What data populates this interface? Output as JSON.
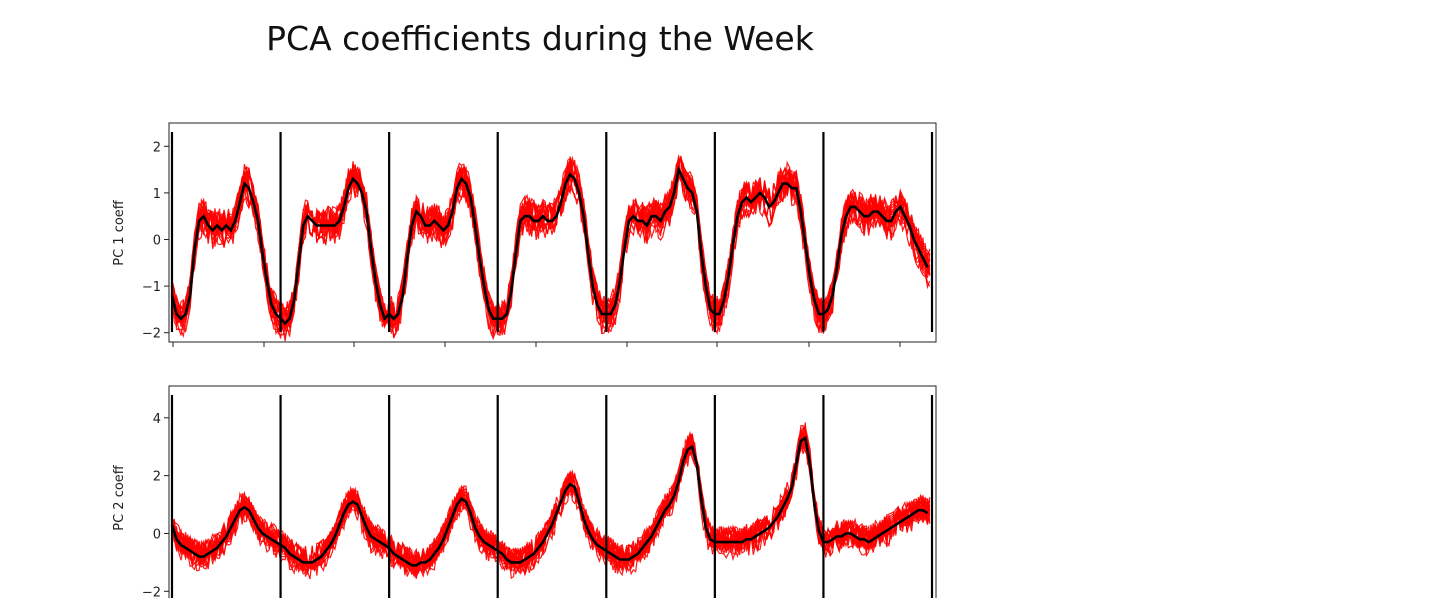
{
  "title": "PCA coefficients during the Week",
  "chart_data": [
    {
      "type": "line",
      "ylabel": "PC 1 coeff",
      "ylim": [
        -2.2,
        2.5
      ],
      "yticks": [
        -2,
        -1,
        0,
        1,
        2
      ],
      "ytick_labels": [
        "−2",
        "−1",
        "0",
        "1",
        "2"
      ],
      "day_boundaries": [
        0,
        1,
        2,
        3,
        4,
        5,
        6,
        7
      ],
      "series_color": "#ff0000",
      "mean_color": "#000000",
      "n_series": 18,
      "mean_profiles_per_day": [
        [
          -1.2,
          -1.6,
          -1.7,
          -1.6,
          -1.2,
          -0.2,
          0.4,
          0.5,
          0.3,
          0.2,
          0.3,
          0.2,
          0.3,
          0.2,
          0.4,
          0.8,
          1.2,
          1.1,
          0.8,
          0.4,
          -0.3,
          -0.9,
          -1.4,
          -1.6
        ],
        [
          -1.7,
          -1.8,
          -1.7,
          -1.3,
          -0.5,
          0.3,
          0.5,
          0.4,
          0.3,
          0.3,
          0.3,
          0.3,
          0.3,
          0.4,
          0.7,
          1.1,
          1.3,
          1.2,
          1.0,
          0.6,
          -0.2,
          -0.9,
          -1.4,
          -1.7
        ],
        [
          -1.6,
          -1.7,
          -1.6,
          -1.2,
          -0.4,
          0.3,
          0.6,
          0.5,
          0.3,
          0.3,
          0.4,
          0.3,
          0.2,
          0.3,
          0.6,
          1.1,
          1.3,
          1.2,
          0.9,
          0.3,
          -0.4,
          -1.0,
          -1.5,
          -1.7
        ],
        [
          -1.7,
          -1.7,
          -1.6,
          -1.1,
          -0.3,
          0.4,
          0.5,
          0.5,
          0.4,
          0.4,
          0.5,
          0.4,
          0.4,
          0.5,
          0.8,
          1.2,
          1.4,
          1.3,
          1.0,
          0.5,
          -0.3,
          -1.0,
          -1.4,
          -1.6
        ],
        [
          -1.6,
          -1.6,
          -1.4,
          -0.9,
          -0.2,
          0.4,
          0.5,
          0.4,
          0.4,
          0.3,
          0.5,
          0.5,
          0.4,
          0.6,
          0.7,
          1.0,
          1.5,
          1.3,
          1.1,
          1.0,
          0.6,
          -0.3,
          -1.0,
          -1.5
        ],
        [
          -1.6,
          -1.6,
          -1.3,
          -0.8,
          -0.1,
          0.5,
          0.8,
          0.9,
          0.8,
          0.9,
          1.0,
          0.9,
          0.7,
          0.8,
          1.0,
          1.2,
          1.2,
          1.1,
          1.1,
          0.6,
          -0.1,
          -0.8,
          -1.3,
          -1.6
        ],
        [
          -1.6,
          -1.5,
          -1.2,
          -0.6,
          0.1,
          0.5,
          0.7,
          0.7,
          0.6,
          0.5,
          0.5,
          0.6,
          0.6,
          0.5,
          0.4,
          0.4,
          0.6,
          0.7,
          0.5,
          0.3,
          0.0,
          -0.2,
          -0.4,
          -0.6
        ]
      ]
    },
    {
      "type": "line",
      "ylabel": "PC 2 coeff",
      "ylim": [
        -3.2,
        5.1
      ],
      "yticks": [
        -2,
        0,
        2,
        4
      ],
      "ytick_labels": [
        "−2",
        "0",
        "2",
        "4"
      ],
      "day_boundaries": [
        0,
        1,
        2,
        3,
        4,
        5,
        6,
        7
      ],
      "series_color": "#ff0000",
      "mean_color": "#000000",
      "n_series": 18,
      "mean_profiles_per_day": [
        [
          0.3,
          -0.2,
          -0.4,
          -0.5,
          -0.6,
          -0.7,
          -0.8,
          -0.8,
          -0.7,
          -0.6,
          -0.5,
          -0.3,
          -0.1,
          0.2,
          0.5,
          0.8,
          0.9,
          0.8,
          0.5,
          0.2,
          0.0,
          -0.1,
          -0.2,
          -0.3
        ],
        [
          -0.4,
          -0.5,
          -0.7,
          -0.8,
          -0.9,
          -1.0,
          -1.0,
          -1.0,
          -0.9,
          -0.8,
          -0.6,
          -0.4,
          -0.1,
          0.3,
          0.7,
          1.0,
          1.1,
          1.0,
          0.6,
          0.2,
          -0.1,
          -0.2,
          -0.3,
          -0.4
        ],
        [
          -0.5,
          -0.7,
          -0.8,
          -0.9,
          -1.0,
          -1.1,
          -1.1,
          -1.0,
          -1.0,
          -0.9,
          -0.7,
          -0.5,
          -0.2,
          0.2,
          0.6,
          1.0,
          1.2,
          1.1,
          0.7,
          0.2,
          -0.1,
          -0.3,
          -0.4,
          -0.5
        ],
        [
          -0.6,
          -0.7,
          -0.9,
          -1.0,
          -1.0,
          -1.0,
          -0.9,
          -0.8,
          -0.7,
          -0.5,
          -0.3,
          0.0,
          0.3,
          0.7,
          1.1,
          1.5,
          1.7,
          1.6,
          1.1,
          0.5,
          0.1,
          -0.2,
          -0.4,
          -0.5
        ],
        [
          -0.6,
          -0.7,
          -0.8,
          -0.9,
          -0.9,
          -0.9,
          -0.8,
          -0.7,
          -0.5,
          -0.3,
          -0.1,
          0.2,
          0.5,
          0.8,
          1.0,
          1.3,
          1.8,
          2.5,
          2.9,
          3.0,
          2.4,
          1.2,
          0.2,
          -0.2
        ],
        [
          -0.3,
          -0.3,
          -0.3,
          -0.3,
          -0.3,
          -0.3,
          -0.3,
          -0.2,
          -0.2,
          -0.1,
          0.0,
          0.1,
          0.2,
          0.4,
          0.6,
          0.9,
          1.2,
          1.6,
          2.4,
          3.2,
          3.3,
          2.4,
          1.0,
          0.1
        ],
        [
          -0.3,
          -0.3,
          -0.2,
          -0.1,
          -0.1,
          0.0,
          0.0,
          -0.1,
          -0.2,
          -0.2,
          -0.3,
          -0.2,
          -0.1,
          0.0,
          0.1,
          0.2,
          0.3,
          0.4,
          0.5,
          0.6,
          0.7,
          0.8,
          0.8,
          0.7
        ]
      ]
    }
  ]
}
